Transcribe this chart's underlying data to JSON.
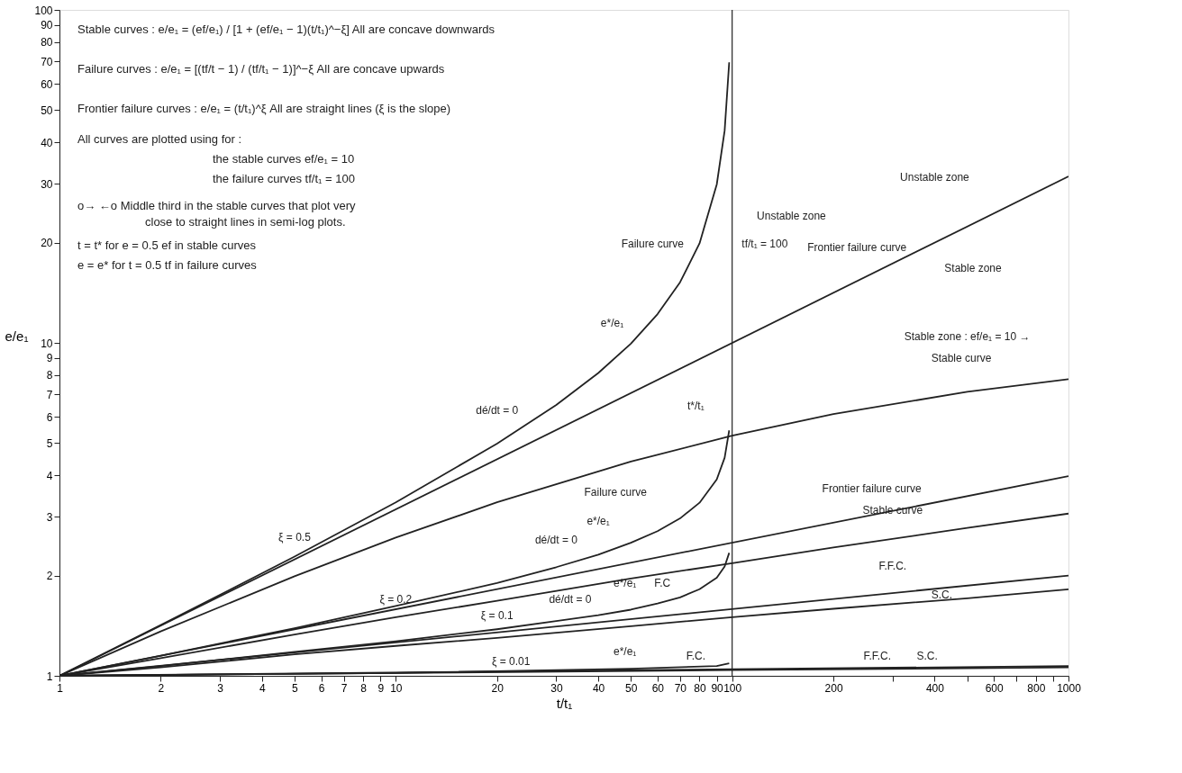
{
  "chart_data": {
    "type": "line",
    "log": "xy",
    "grid": false,
    "line_style": "solid",
    "xlabel": "t/t₁",
    "ylabel": "e/e₁",
    "xlim": [
      1,
      1000
    ],
    "ylim": [
      1,
      100
    ],
    "xticks": [
      1,
      2,
      3,
      4,
      5,
      6,
      7,
      8,
      9,
      10,
      20,
      30,
      40,
      50,
      60,
      70,
      80,
      90,
      100,
      200,
      {
        "value": 300,
        "label": null
      },
      400,
      {
        "value": 500,
        "label": null
      },
      600,
      {
        "value": 700,
        "label": null
      },
      800,
      {
        "value": 900,
        "label": null
      },
      1000
    ],
    "yticks": [
      1,
      2,
      3,
      4,
      5,
      6,
      7,
      8,
      9,
      10,
      20,
      30,
      40,
      50,
      60,
      70,
      80,
      90,
      100
    ],
    "ref_lines": [
      {
        "axis": "x",
        "value": 100,
        "color": "#222222"
      }
    ],
    "series": [
      {
        "color": "#222222",
        "x": [
          1,
          1000
        ],
        "values": [
          1,
          31.6
        ]
      },
      {
        "color": "#222222",
        "x": [
          1,
          2,
          5,
          10,
          20,
          50,
          100,
          200,
          500,
          1000
        ],
        "values": [
          1,
          1.36,
          1.99,
          2.6,
          3.32,
          4.4,
          5.26,
          6.11,
          7.13,
          7.78
        ]
      },
      {
        "color": "#222222",
        "x": [
          1,
          2,
          5,
          10,
          20,
          30,
          40,
          50,
          60,
          70,
          80,
          90,
          95,
          98
        ],
        "values": [
          1,
          1.42,
          2.28,
          3.32,
          4.98,
          6.51,
          8.12,
          9.95,
          12.2,
          15.2,
          19.9,
          29.9,
          43.4,
          69.6
        ]
      },
      {
        "color": "#222222",
        "x": [
          1,
          1000
        ],
        "values": [
          1,
          3.98
        ]
      },
      {
        "color": "#222222",
        "x": [
          1,
          2,
          5,
          10,
          20,
          50,
          100,
          200,
          500,
          1000
        ],
        "values": [
          1,
          1.13,
          1.33,
          1.5,
          1.68,
          1.96,
          2.18,
          2.43,
          2.78,
          3.07
        ]
      },
      {
        "color": "#222222",
        "x": [
          1,
          2,
          5,
          10,
          20,
          30,
          40,
          50,
          60,
          70,
          80,
          90,
          95,
          98
        ],
        "values": [
          1,
          1.15,
          1.39,
          1.62,
          1.9,
          2.12,
          2.31,
          2.51,
          2.72,
          2.97,
          3.31,
          3.89,
          4.52,
          5.46
        ]
      },
      {
        "color": "#222222",
        "x": [
          1,
          1000
        ],
        "values": [
          1,
          2.0
        ]
      },
      {
        "color": "#222222",
        "x": [
          1,
          2,
          5,
          10,
          20,
          50,
          100,
          200,
          500,
          1000
        ],
        "values": [
          1,
          1.06,
          1.16,
          1.23,
          1.3,
          1.41,
          1.5,
          1.59,
          1.71,
          1.82
        ]
      },
      {
        "color": "#222222",
        "x": [
          1,
          2,
          5,
          10,
          20,
          30,
          40,
          50,
          60,
          70,
          80,
          90,
          95,
          98
        ],
        "values": [
          1,
          1.07,
          1.18,
          1.27,
          1.38,
          1.46,
          1.52,
          1.58,
          1.65,
          1.72,
          1.82,
          1.97,
          2.13,
          2.34
        ]
      },
      {
        "color": "#222222",
        "x": [
          1,
          1000
        ],
        "values": [
          1,
          1.07
        ]
      },
      {
        "color": "#222222",
        "x": [
          1,
          10,
          100,
          1000
        ],
        "values": [
          1,
          1.02,
          1.04,
          1.06
        ]
      },
      {
        "color": "#222222",
        "x": [
          1,
          10,
          50,
          90,
          98
        ],
        "values": [
          1,
          1.02,
          1.05,
          1.07,
          1.09
        ]
      }
    ],
    "annotations": [
      "Stable curves : e/e₁ = (ef/e₁) / [1 + (ef/e₁ − 1)(t/t₁)^−ξ]  All are concave downwards",
      "Failure curves : e/e₁ = [(tf/t − 1) / (tf/t₁ − 1)]^−ξ  All are concave upwards",
      "Frontier failure curves : e/e₁ = (t/t₁)^ξ  All are straight lines (ξ is the slope)",
      "All curves are plotted using for :",
      "the stable curves ef/e₁ = 10",
      "the failure curves tf/t₁ = 100",
      "o→ ←o  Middle third in the stable curves that plot very",
      "close to straight lines in semi-log plots.",
      "t = t* for e = 0.5 ef in stable curves",
      "e = e* for t = 0.5 tf in failure curves",
      "ξ = 0.5",
      "ξ = 0.2",
      "ξ = 0.1",
      "ξ = 0.01",
      "Failure curve",
      "e*/e₁",
      "Frontier failure curve",
      "Unstable zone",
      "tf/t₁ = 100",
      "Unstable zone",
      "Stable zone",
      "Stable zone : ef/e₁ = 10 →",
      "Stable curve",
      "dé/dt = 0",
      "t*/t₁",
      "e*/e₁",
      "Failure curve",
      "dé/dt = 0",
      "Frontier failure curve",
      "Stable curve",
      "e*/e₁",
      "F.C",
      "dé/dt = 0",
      "F.F.C.",
      "S.C.",
      "e*/e₁",
      "F.C.",
      "F.F.C.",
      "S.C."
    ]
  }
}
